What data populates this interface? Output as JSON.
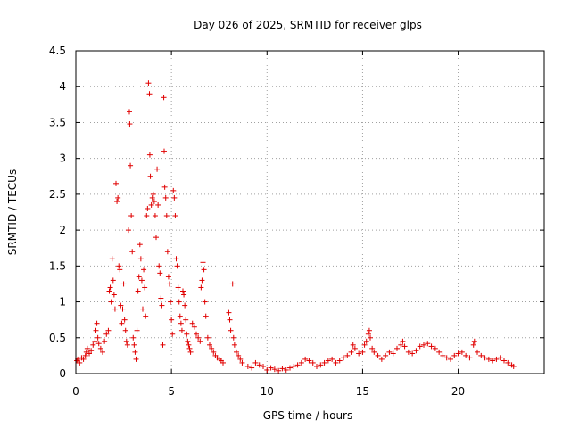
{
  "chart_data": {
    "type": "scatter",
    "title": "Day 026 of 2025, SRMTID for receiver glps",
    "xlabel": "GPS time / hours",
    "ylabel": "SRMTID / TECUs",
    "xlim": [
      0,
      24.5
    ],
    "ylim": [
      0,
      4.5
    ],
    "xticks": [
      0,
      5,
      10,
      15,
      20
    ],
    "yticks": [
      0,
      0.5,
      1,
      1.5,
      2,
      2.5,
      3,
      3.5,
      4,
      4.5
    ],
    "xtick_labels": [
      "0",
      "5",
      "10",
      "15",
      "20"
    ],
    "ytick_labels": [
      "0",
      "0.5",
      "1",
      "1.5",
      "2",
      "2.5",
      "3",
      "3.5",
      "4",
      "4.5"
    ],
    "grid": true,
    "marker": "+",
    "color": "#e00000",
    "series": [
      {
        "name": "SRMTID",
        "points": [
          [
            0.05,
            0.18
          ],
          [
            0.1,
            0.2
          ],
          [
            0.2,
            0.15
          ],
          [
            0.3,
            0.22
          ],
          [
            0.4,
            0.2
          ],
          [
            0.5,
            0.25
          ],
          [
            0.55,
            0.3
          ],
          [
            0.6,
            0.35
          ],
          [
            0.7,
            0.28
          ],
          [
            0.8,
            0.32
          ],
          [
            0.9,
            0.4
          ],
          [
            1.0,
            0.45
          ],
          [
            1.05,
            0.6
          ],
          [
            1.1,
            0.7
          ],
          [
            1.15,
            0.5
          ],
          [
            1.2,
            0.42
          ],
          [
            1.3,
            0.35
          ],
          [
            1.4,
            0.3
          ],
          [
            1.5,
            0.45
          ],
          [
            1.6,
            0.55
          ],
          [
            1.7,
            0.6
          ],
          [
            1.75,
            1.15
          ],
          [
            1.8,
            1.2
          ],
          [
            1.85,
            1.0
          ],
          [
            1.9,
            1.6
          ],
          [
            1.95,
            1.3
          ],
          [
            2.0,
            1.1
          ],
          [
            2.05,
            0.9
          ],
          [
            2.1,
            2.65
          ],
          [
            2.15,
            2.4
          ],
          [
            2.2,
            2.45
          ],
          [
            2.25,
            1.5
          ],
          [
            2.3,
            1.45
          ],
          [
            2.35,
            0.95
          ],
          [
            2.4,
            0.7
          ],
          [
            2.45,
            0.9
          ],
          [
            2.5,
            1.25
          ],
          [
            2.55,
            0.75
          ],
          [
            2.6,
            0.6
          ],
          [
            2.65,
            0.45
          ],
          [
            2.7,
            0.4
          ],
          [
            2.75,
            2.0
          ],
          [
            2.8,
            3.65
          ],
          [
            2.82,
            3.48
          ],
          [
            2.85,
            2.9
          ],
          [
            2.9,
            2.2
          ],
          [
            2.95,
            1.7
          ],
          [
            3.0,
            0.5
          ],
          [
            3.05,
            0.4
          ],
          [
            3.1,
            0.3
          ],
          [
            3.15,
            0.2
          ],
          [
            3.2,
            0.6
          ],
          [
            3.25,
            1.15
          ],
          [
            3.3,
            1.35
          ],
          [
            3.35,
            1.8
          ],
          [
            3.4,
            1.6
          ],
          [
            3.45,
            1.3
          ],
          [
            3.5,
            0.9
          ],
          [
            3.55,
            1.45
          ],
          [
            3.6,
            1.2
          ],
          [
            3.65,
            0.8
          ],
          [
            3.7,
            2.2
          ],
          [
            3.75,
            2.3
          ],
          [
            3.8,
            4.05
          ],
          [
            3.85,
            3.9
          ],
          [
            3.87,
            3.05
          ],
          [
            3.9,
            2.75
          ],
          [
            3.95,
            2.35
          ],
          [
            4.0,
            2.45
          ],
          [
            4.05,
            2.5
          ],
          [
            4.1,
            2.4
          ],
          [
            4.15,
            2.2
          ],
          [
            4.2,
            1.9
          ],
          [
            4.25,
            2.85
          ],
          [
            4.3,
            2.35
          ],
          [
            4.35,
            1.5
          ],
          [
            4.4,
            1.4
          ],
          [
            4.45,
            1.05
          ],
          [
            4.5,
            0.95
          ],
          [
            4.55,
            0.4
          ],
          [
            4.6,
            3.85
          ],
          [
            4.62,
            3.1
          ],
          [
            4.65,
            2.6
          ],
          [
            4.7,
            2.45
          ],
          [
            4.75,
            2.2
          ],
          [
            4.8,
            1.7
          ],
          [
            4.85,
            1.35
          ],
          [
            4.9,
            1.25
          ],
          [
            4.95,
            1.0
          ],
          [
            5.0,
            0.75
          ],
          [
            5.05,
            0.55
          ],
          [
            5.1,
            2.55
          ],
          [
            5.15,
            2.45
          ],
          [
            5.2,
            2.2
          ],
          [
            5.25,
            1.6
          ],
          [
            5.3,
            1.5
          ],
          [
            5.35,
            1.2
          ],
          [
            5.4,
            1.0
          ],
          [
            5.45,
            0.8
          ],
          [
            5.5,
            0.7
          ],
          [
            5.55,
            0.6
          ],
          [
            5.6,
            1.15
          ],
          [
            5.65,
            1.1
          ],
          [
            5.7,
            0.95
          ],
          [
            5.75,
            0.75
          ],
          [
            5.8,
            0.55
          ],
          [
            5.85,
            0.45
          ],
          [
            5.9,
            0.4
          ],
          [
            5.95,
            0.35
          ],
          [
            6.0,
            0.3
          ],
          [
            6.1,
            0.7
          ],
          [
            6.2,
            0.65
          ],
          [
            6.3,
            0.55
          ],
          [
            6.4,
            0.5
          ],
          [
            6.5,
            0.45
          ],
          [
            6.55,
            1.2
          ],
          [
            6.6,
            1.3
          ],
          [
            6.65,
            1.55
          ],
          [
            6.7,
            1.45
          ],
          [
            6.75,
            1.0
          ],
          [
            6.8,
            0.8
          ],
          [
            6.9,
            0.5
          ],
          [
            7.0,
            0.4
          ],
          [
            7.1,
            0.35
          ],
          [
            7.2,
            0.3
          ],
          [
            7.3,
            0.25
          ],
          [
            7.4,
            0.22
          ],
          [
            7.5,
            0.2
          ],
          [
            7.6,
            0.18
          ],
          [
            7.7,
            0.15
          ],
          [
            8.0,
            0.85
          ],
          [
            8.05,
            0.75
          ],
          [
            8.1,
            0.6
          ],
          [
            8.2,
            1.25
          ],
          [
            8.25,
            0.5
          ],
          [
            8.3,
            0.4
          ],
          [
            8.4,
            0.3
          ],
          [
            8.5,
            0.25
          ],
          [
            8.6,
            0.2
          ],
          [
            8.7,
            0.15
          ],
          [
            9.0,
            0.1
          ],
          [
            9.2,
            0.08
          ],
          [
            9.4,
            0.15
          ],
          [
            9.6,
            0.12
          ],
          [
            9.8,
            0.1
          ],
          [
            10.0,
            0.05
          ],
          [
            10.2,
            0.08
          ],
          [
            10.4,
            0.06
          ],
          [
            10.6,
            0.04
          ],
          [
            10.8,
            0.07
          ],
          [
            11.0,
            0.05
          ],
          [
            11.2,
            0.08
          ],
          [
            11.4,
            0.1
          ],
          [
            11.6,
            0.12
          ],
          [
            11.8,
            0.15
          ],
          [
            12.0,
            0.2
          ],
          [
            12.2,
            0.18
          ],
          [
            12.4,
            0.15
          ],
          [
            12.6,
            0.1
          ],
          [
            12.8,
            0.12
          ],
          [
            13.0,
            0.15
          ],
          [
            13.2,
            0.18
          ],
          [
            13.4,
            0.2
          ],
          [
            13.6,
            0.15
          ],
          [
            13.8,
            0.18
          ],
          [
            14.0,
            0.22
          ],
          [
            14.2,
            0.25
          ],
          [
            14.4,
            0.3
          ],
          [
            14.5,
            0.4
          ],
          [
            14.6,
            0.35
          ],
          [
            14.8,
            0.28
          ],
          [
            15.0,
            0.3
          ],
          [
            15.1,
            0.4
          ],
          [
            15.2,
            0.45
          ],
          [
            15.3,
            0.55
          ],
          [
            15.35,
            0.6
          ],
          [
            15.4,
            0.5
          ],
          [
            15.5,
            0.35
          ],
          [
            15.6,
            0.3
          ],
          [
            15.8,
            0.25
          ],
          [
            16.0,
            0.2
          ],
          [
            16.2,
            0.25
          ],
          [
            16.4,
            0.3
          ],
          [
            16.6,
            0.28
          ],
          [
            16.8,
            0.35
          ],
          [
            17.0,
            0.4
          ],
          [
            17.1,
            0.45
          ],
          [
            17.2,
            0.38
          ],
          [
            17.4,
            0.3
          ],
          [
            17.6,
            0.28
          ],
          [
            17.8,
            0.32
          ],
          [
            18.0,
            0.38
          ],
          [
            18.2,
            0.4
          ],
          [
            18.4,
            0.42
          ],
          [
            18.6,
            0.38
          ],
          [
            18.8,
            0.35
          ],
          [
            19.0,
            0.3
          ],
          [
            19.2,
            0.25
          ],
          [
            19.4,
            0.22
          ],
          [
            19.6,
            0.2
          ],
          [
            19.8,
            0.25
          ],
          [
            20.0,
            0.28
          ],
          [
            20.2,
            0.3
          ],
          [
            20.4,
            0.25
          ],
          [
            20.6,
            0.22
          ],
          [
            20.8,
            0.4
          ],
          [
            20.85,
            0.45
          ],
          [
            21.0,
            0.3
          ],
          [
            21.2,
            0.25
          ],
          [
            21.4,
            0.22
          ],
          [
            21.6,
            0.2
          ],
          [
            21.8,
            0.18
          ],
          [
            22.0,
            0.2
          ],
          [
            22.2,
            0.22
          ],
          [
            22.4,
            0.18
          ],
          [
            22.6,
            0.15
          ],
          [
            22.8,
            0.12
          ],
          [
            22.9,
            0.1
          ]
        ]
      }
    ]
  }
}
